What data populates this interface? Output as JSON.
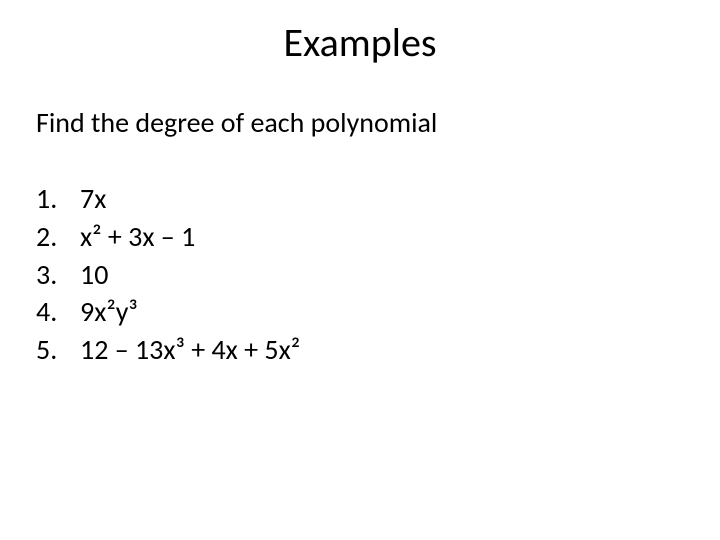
{
  "slide": {
    "title": "Examples",
    "subtitle": "Find the degree of each polynomial",
    "title_fontsize": 40,
    "subtitle_fontsize": 28,
    "list_fontsize": 28,
    "text_color": "#000000",
    "background_color": "#ffffff",
    "items": [
      {
        "num": "1.",
        "text": "7x"
      },
      {
        "num": "2.",
        "text": "x² + 3x – 1"
      },
      {
        "num": "3.",
        "text": "10"
      },
      {
        "num": "4.",
        "text": "9x²y³"
      },
      {
        "num": "5.",
        "text": "12 – 13x³ + 4x + 5x²"
      }
    ]
  }
}
